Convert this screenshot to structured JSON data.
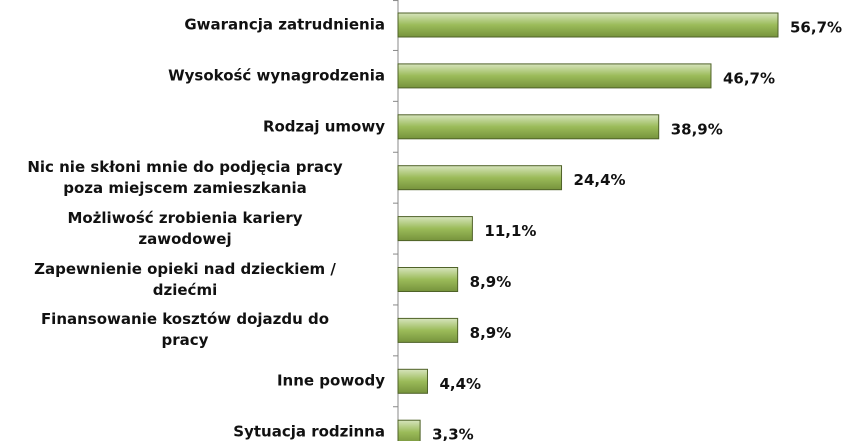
{
  "chart_data": {
    "type": "bar",
    "orientation": "horizontal",
    "categories": [
      "Gwarancja zatrudnienia",
      "Wysokość wynagrodzenia",
      "Rodzaj umowy",
      "Nic nie skłoni mnie do podjęcia pracy\npoza miejscem zamieszkania",
      "Możliwość zrobienia kariery\nzawodowej",
      "Zapewnienie opieki nad dzieckiem /\ndziećmi",
      "Finansowanie kosztów dojazdu do\npracy",
      "Inne powody",
      "Sytuacja rodzinna"
    ],
    "values": [
      56.7,
      46.7,
      38.9,
      24.4,
      11.1,
      8.9,
      8.9,
      4.4,
      3.3
    ],
    "value_labels": [
      "56,7%",
      "46,7%",
      "38,9%",
      "24,4%",
      "11,1%",
      "8,9%",
      "8,9%",
      "4,4%",
      "3,3%"
    ],
    "color": "#9bbb59"
  }
}
